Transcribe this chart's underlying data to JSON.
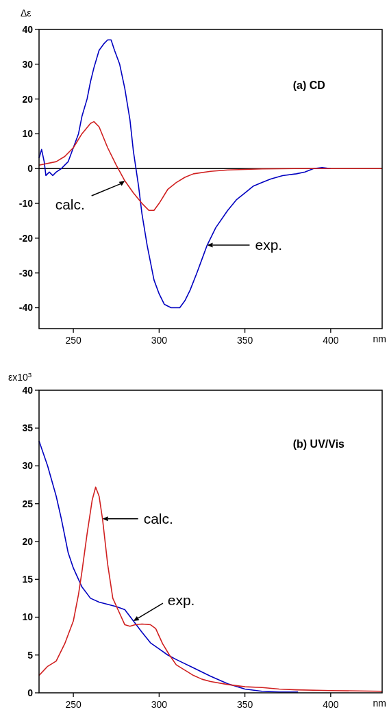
{
  "chart_data": [
    {
      "type": "line",
      "title": "(a) CD",
      "ylabel": "Δε",
      "xlabel": "nm",
      "xlim": [
        230,
        430
      ],
      "xticks": [
        250,
        300,
        350,
        400
      ],
      "ylim": [
        -46,
        40
      ],
      "yticks": [
        -40,
        -30,
        -20,
        -10,
        0,
        10,
        20,
        30,
        40
      ],
      "grid": false,
      "line_style": "solid",
      "marker": "none",
      "ref_lines": [
        {
          "axis": "y",
          "value": 0,
          "color": "#000000"
        }
      ],
      "annotations": [
        {
          "text": "calc.",
          "x": 280,
          "y": -3.5
        },
        {
          "text": "exp.",
          "x": 328,
          "y": -22
        }
      ],
      "series": [
        {
          "color": "#0000c0",
          "x": [
            230,
            231.5,
            233,
            234,
            236,
            238,
            240,
            243,
            245,
            247,
            250,
            253,
            255,
            258,
            260,
            262,
            265,
            268,
            270,
            272,
            274,
            277,
            280,
            283,
            285,
            288,
            290,
            293,
            297,
            300,
            303,
            307,
            312,
            315,
            318,
            322,
            325,
            328,
            333,
            340,
            345,
            350,
            355,
            360,
            365,
            372,
            380,
            385,
            390,
            395,
            400
          ],
          "values": [
            3,
            5.5,
            2,
            -2,
            -1,
            -2,
            -1,
            0,
            1,
            2,
            6,
            10,
            15,
            20,
            25,
            29,
            34,
            36,
            37,
            37,
            34,
            30,
            23,
            14,
            5,
            -5,
            -13,
            -22,
            -32,
            -36,
            -39,
            -40,
            -40,
            -38,
            -35,
            -30,
            -26,
            -22,
            -17,
            -12,
            -9,
            -7,
            -5,
            -4,
            -3,
            -2,
            -1.5,
            -1,
            0,
            0.3,
            0
          ]
        },
        {
          "color": "#d02020",
          "x": [
            230,
            240,
            245,
            250,
            255,
            260,
            262,
            265,
            270,
            275,
            280,
            285,
            290,
            294,
            297,
            300,
            305,
            310,
            315,
            320,
            330,
            340,
            360,
            380,
            430
          ],
          "values": [
            1,
            2,
            3.5,
            6,
            10,
            13,
            13.5,
            12,
            6,
            1,
            -3.5,
            -7,
            -10,
            -12,
            -12,
            -10,
            -6,
            -4,
            -2.5,
            -1.5,
            -0.8,
            -0.4,
            -0.1,
            0,
            0
          ]
        }
      ]
    },
    {
      "type": "line",
      "title": "(b) UV/Vis",
      "ylabel": "εx10$^{3}$",
      "xlabel": "nm",
      "xlim": [
        230,
        430
      ],
      "xticks": [
        250,
        300,
        350,
        400
      ],
      "ylim": [
        0,
        40
      ],
      "yticks": [
        0,
        5,
        10,
        15,
        20,
        25,
        30,
        35,
        40
      ],
      "grid": false,
      "line_style": "solid",
      "marker": "none",
      "annotations": [
        {
          "text": "calc.",
          "x": 267,
          "y": 23
        },
        {
          "text": "exp.",
          "x": 285,
          "y": 9.5
        }
      ],
      "series": [
        {
          "color": "#0000c0",
          "x": [
            230,
            235,
            240,
            243,
            247,
            250,
            255,
            260,
            265,
            270,
            275,
            280,
            285,
            290,
            295,
            300,
            305,
            310,
            320,
            330,
            340,
            350,
            360,
            370,
            381
          ],
          "values": [
            33.3,
            30,
            26,
            23,
            18.5,
            16.5,
            14,
            12.5,
            12,
            11.7,
            11.4,
            11,
            9.5,
            8,
            6.6,
            5.8,
            5,
            4.4,
            3.3,
            2.2,
            1.2,
            0.5,
            0.2,
            0.1,
            0.1
          ]
        },
        {
          "color": "#d02020",
          "x": [
            230,
            235,
            240,
            245,
            250,
            253,
            255,
            258,
            261,
            263,
            265,
            267,
            270,
            273,
            277,
            280,
            283,
            286,
            290,
            295,
            298,
            302,
            306,
            310,
            315,
            320,
            325,
            330,
            340,
            350,
            360,
            370,
            380,
            400,
            430
          ],
          "values": [
            2.3,
            3.5,
            4.2,
            6.5,
            9.5,
            13,
            16,
            21,
            25.5,
            27.2,
            26,
            23,
            17,
            12.5,
            10.5,
            9,
            8.8,
            9,
            9.1,
            9,
            8.5,
            6.5,
            5,
            3.7,
            3,
            2.3,
            1.8,
            1.5,
            1.1,
            0.8,
            0.7,
            0.5,
            0.4,
            0.3,
            0.2
          ]
        }
      ]
    }
  ]
}
